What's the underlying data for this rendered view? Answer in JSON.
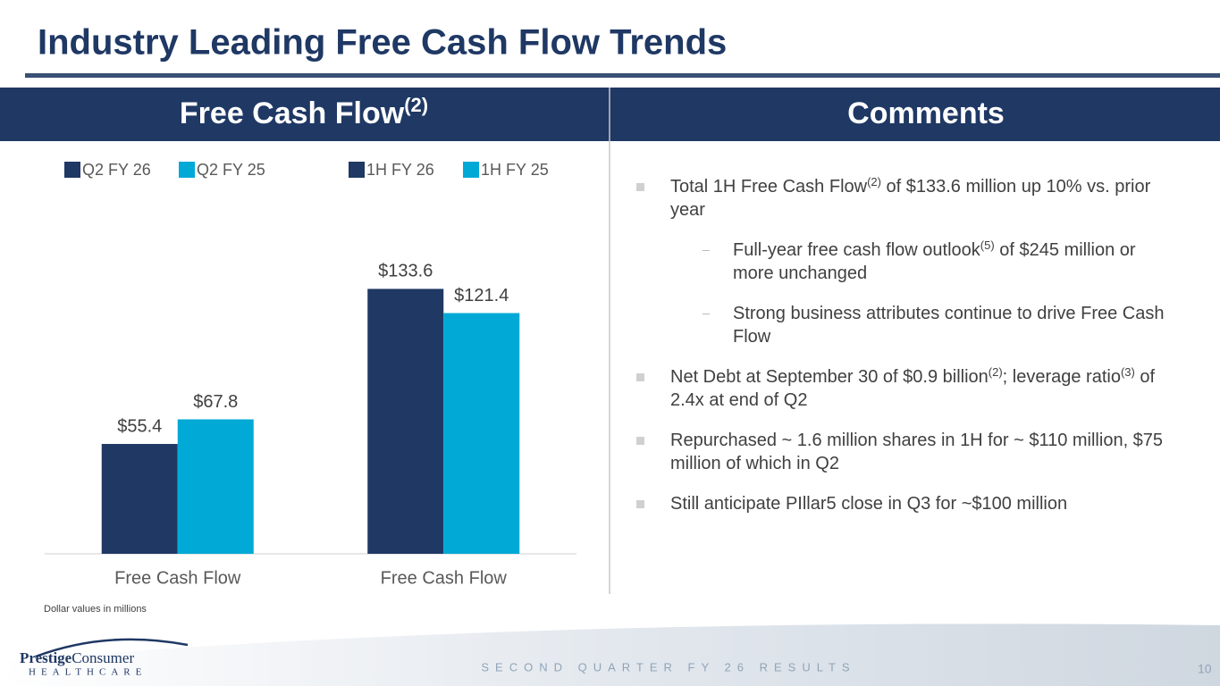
{
  "title": "Industry Leading Free Cash Flow Trends",
  "header": {
    "left": [
      "Free Cash Flow",
      "(2)"
    ],
    "right": "Comments"
  },
  "chart_data": {
    "type": "bar",
    "categories": [
      "Free Cash Flow",
      "Free Cash Flow"
    ],
    "series": [
      {
        "name": "Q2 FY 26",
        "color": "#1f3864",
        "values": [
          55.4,
          null
        ],
        "value_labels": [
          "$55.4",
          null
        ]
      },
      {
        "name": "Q2 FY 25",
        "color": "#00a9d6",
        "values": [
          67.8,
          null
        ],
        "value_labels": [
          "$67.8",
          null
        ]
      },
      {
        "name": "1H FY 26",
        "color": "#1f3864",
        "values": [
          null,
          133.6
        ],
        "value_labels": [
          null,
          "$133.6"
        ]
      },
      {
        "name": "1H FY 25",
        "color": "#00a9d6",
        "values": [
          null,
          121.4
        ],
        "value_labels": [
          null,
          "$121.4"
        ]
      }
    ],
    "ylim": [
      0,
      150
    ]
  },
  "note": "Dollar values in millions",
  "comments": [
    {
      "level": 1,
      "parts": [
        "Total 1H Free Cash Flow",
        "(2)",
        " of $133.6 million up 10% vs. prior year"
      ]
    },
    {
      "level": 2,
      "parts": [
        "Full-year free cash flow outlook",
        "(5)",
        " of $245 million or more unchanged"
      ]
    },
    {
      "level": 2,
      "parts": [
        "Strong business attributes continue to drive Free Cash Flow"
      ]
    },
    {
      "level": 1,
      "parts": [
        "Net Debt at September 30 of $0.9 billion",
        "(2)",
        "; leverage ratio",
        "(3)",
        " of 2.4x at end of Q2"
      ]
    },
    {
      "level": 1,
      "parts": [
        "Repurchased ~ 1.6 million shares in 1H for ~ $110 million, $75 million of which in Q2"
      ]
    },
    {
      "level": 1,
      "parts": [
        "Still anticipate PIllar5 close in Q3 for ~$100 million"
      ]
    }
  ],
  "footer": {
    "text": "SECOND QUARTER FY 26 RESULTS",
    "page": "10"
  },
  "logo": {
    "name": [
      "Prestige",
      "Consumer"
    ],
    "sub": "HEALTHCARE"
  }
}
